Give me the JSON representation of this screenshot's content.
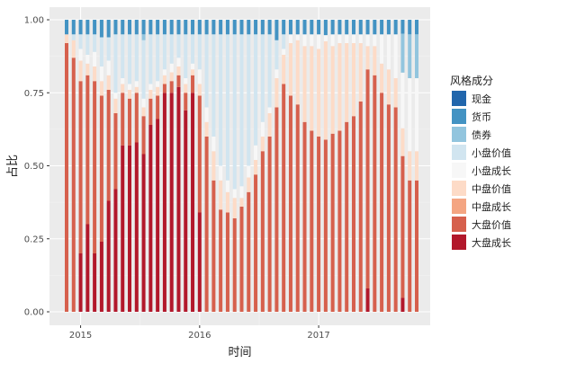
{
  "chart_data": {
    "type": "bar",
    "stacked": true,
    "xlabel": "时间",
    "ylabel": "占比",
    "ylim": [
      0,
      1
    ],
    "yticks": [
      "0.00",
      "0.25",
      "0.50",
      "0.75",
      "1.00"
    ],
    "ytick_values": [
      0,
      0.25,
      0.5,
      0.75,
      1
    ],
    "xticks": [
      {
        "label": "2015",
        "index": 2
      },
      {
        "label": "2016",
        "index": 19
      },
      {
        "label": "2017",
        "index": 36
      }
    ],
    "grid": true,
    "legend": {
      "title": "风格成分",
      "position": "right"
    },
    "series": [
      {
        "name": "现金",
        "color": "#2166ac",
        "values": [
          0,
          0,
          0,
          0,
          0,
          0,
          0,
          0,
          0,
          0,
          0,
          0,
          0,
          0,
          0,
          0,
          0,
          0,
          0,
          0,
          0,
          0,
          0,
          0,
          0,
          0,
          0,
          0,
          0,
          0,
          0,
          0,
          0,
          0,
          0,
          0,
          0,
          0,
          0,
          0,
          0,
          0,
          0,
          0,
          0,
          0,
          0,
          0,
          0,
          0,
          0
        ]
      },
      {
        "name": "货币",
        "color": "#4393c3",
        "values": [
          0.05,
          0.05,
          0.05,
          0.05,
          0.05,
          0.06,
          0.06,
          0.05,
          0.05,
          0.05,
          0.05,
          0.05,
          0.05,
          0.05,
          0.05,
          0.05,
          0.05,
          0.05,
          0.05,
          0.05,
          0.05,
          0.05,
          0.05,
          0.05,
          0.05,
          0.05,
          0.05,
          0.05,
          0.05,
          0.05,
          0.07,
          0.05,
          0.05,
          0.05,
          0.05,
          0.05,
          0.05,
          0.05,
          0.05,
          0.05,
          0.05,
          0.05,
          0.05,
          0.05,
          0.05,
          0.05,
          0.05,
          0.05,
          0.05,
          0.05,
          0.05
        ]
      },
      {
        "name": "债券",
        "color": "#92c5de",
        "values": [
          0,
          0,
          0,
          0,
          0,
          0,
          0,
          0,
          0,
          0,
          0,
          0.02,
          0,
          0,
          0,
          0,
          0,
          0,
          0,
          0,
          0,
          0,
          0,
          0,
          0,
          0,
          0,
          0,
          0,
          0,
          0,
          0,
          0,
          0,
          0,
          0,
          0,
          0,
          0,
          0,
          0,
          0,
          0,
          0,
          0,
          0,
          0,
          0,
          0.14,
          0.15,
          0.15
        ]
      },
      {
        "name": "小盘价值",
        "color": "#d1e5f0",
        "values": [
          0,
          0.02,
          0.05,
          0.07,
          0.06,
          0.1,
          0.08,
          0.2,
          0.15,
          0.17,
          0.16,
          0.2,
          0.17,
          0.16,
          0.12,
          0.1,
          0.08,
          0.15,
          0.1,
          0.12,
          0.25,
          0.35,
          0.45,
          0.5,
          0.53,
          0.52,
          0.45,
          0.38,
          0.3,
          0.25,
          0.1,
          0.05,
          0,
          0,
          0,
          0,
          0,
          0,
          0,
          0,
          0,
          0,
          0,
          0,
          0,
          0,
          0,
          0,
          0,
          0,
          0
        ]
      },
      {
        "name": "小盘成长",
        "color": "#f7f7f7",
        "values": [
          0,
          0,
          0.04,
          0.03,
          0.05,
          0.05,
          0.05,
          0.02,
          0.02,
          0.02,
          0.02,
          0.03,
          0.02,
          0.02,
          0.02,
          0.03,
          0.03,
          0.02,
          0.02,
          0.05,
          0.05,
          0.05,
          0.05,
          0.04,
          0.03,
          0.04,
          0.04,
          0.05,
          0.05,
          0.02,
          0.03,
          0.02,
          0.03,
          0.02,
          0.04,
          0.04,
          0.05,
          0.02,
          0.04,
          0.03,
          0.03,
          0.03,
          0.03,
          0.04,
          0.04,
          0.1,
          0.12,
          0.15,
          0.2,
          0.25,
          0.25
        ]
      },
      {
        "name": "中盘价值",
        "color": "#fddbc7",
        "values": [
          0.03,
          0.06,
          0.07,
          0.04,
          0.05,
          0.05,
          0.05,
          0.05,
          0.03,
          0.03,
          0.02,
          0.03,
          0.03,
          0.03,
          0.03,
          0.03,
          0.03,
          0.03,
          0.02,
          0.04,
          0.05,
          0.1,
          0.1,
          0.07,
          0.07,
          0.03,
          0.05,
          0.05,
          0.05,
          0.08,
          0.1,
          0.1,
          0.18,
          0.22,
          0.26,
          0.29,
          0.3,
          0.32,
          0.3,
          0.3,
          0.27,
          0.25,
          0.2,
          0.08,
          0.1,
          0.1,
          0.12,
          0.1,
          0.1,
          0.1,
          0.1
        ]
      },
      {
        "name": "中盘成长",
        "color": "#f4a582",
        "values": [
          0,
          0,
          0,
          0,
          0,
          0,
          0,
          0,
          0,
          0,
          0,
          0,
          0,
          0,
          0,
          0,
          0,
          0,
          0,
          0,
          0,
          0,
          0,
          0,
          0,
          0,
          0,
          0,
          0,
          0,
          0,
          0,
          0,
          0,
          0,
          0,
          0,
          0,
          0,
          0,
          0,
          0,
          0,
          0,
          0,
          0,
          0,
          0,
          0,
          0,
          0
        ]
      },
      {
        "name": "大盘价值",
        "color": "#d6604d",
        "values": [
          0.92,
          0.87,
          0.59,
          0.51,
          0.59,
          0.5,
          0.38,
          0.26,
          0.18,
          0.16,
          0.17,
          0.13,
          0.09,
          0.08,
          0.03,
          0.04,
          0.04,
          0.06,
          0.06,
          0.4,
          0.6,
          0.45,
          0.35,
          0.34,
          0.32,
          0.36,
          0.41,
          0.47,
          0.55,
          0.6,
          0.7,
          0.78,
          0.74,
          0.71,
          0.65,
          0.62,
          0.6,
          0.56,
          0.61,
          0.62,
          0.65,
          0.67,
          0.72,
          0.75,
          0.81,
          0.75,
          0.71,
          0.7,
          0.51,
          0.45,
          0.45
        ]
      },
      {
        "name": "大盘成长",
        "color": "#b2182b",
        "values": [
          0,
          0,
          0.2,
          0.3,
          0.2,
          0.24,
          0.38,
          0.42,
          0.57,
          0.57,
          0.58,
          0.54,
          0.64,
          0.66,
          0.75,
          0.75,
          0.77,
          0.69,
          0.75,
          0.34,
          0,
          0,
          0,
          0,
          0,
          0,
          0,
          0,
          0,
          0,
          0,
          0,
          0,
          0,
          0,
          0,
          0,
          0,
          0,
          0,
          0,
          0,
          0,
          0.08,
          0,
          0,
          0,
          0,
          0.05,
          0,
          0
        ]
      }
    ]
  }
}
